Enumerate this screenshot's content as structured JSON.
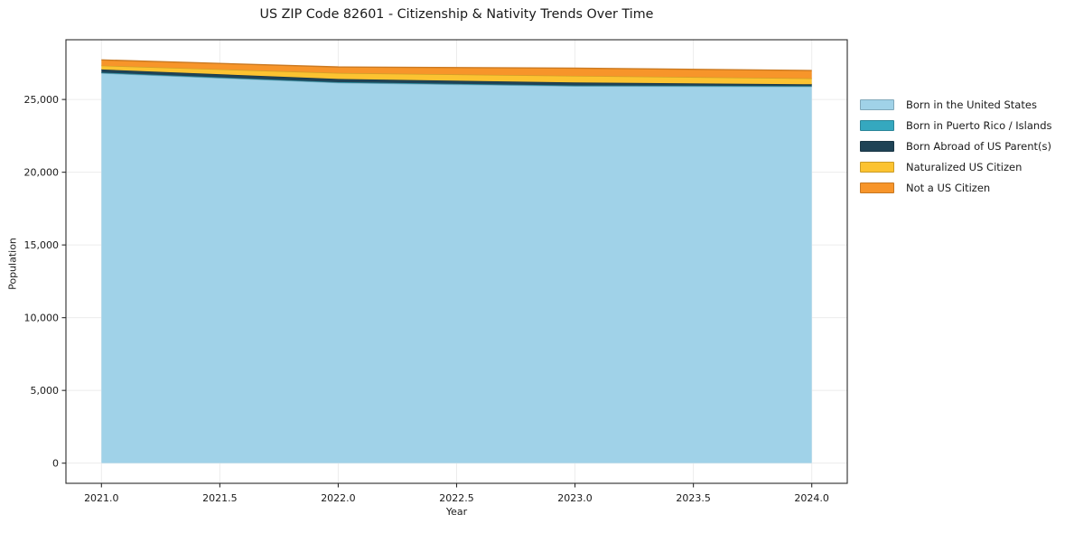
{
  "page": {
    "background": "#ffffff",
    "text_color": "#1a1a1a",
    "grid_color": "#ececec",
    "spine_color": "#2b2b2b"
  },
  "chart_data": {
    "type": "area",
    "stacked": true,
    "title": "US ZIP Code 82601 - Citizenship & Nativity Trends Over Time",
    "xlabel": "Year",
    "ylabel": "Population",
    "x": [
      2021,
      2022,
      2023,
      2024
    ],
    "xlim": [
      2020.85,
      2024.15
    ],
    "ylim": [
      -1386,
      29106
    ],
    "grid": true,
    "legend_position": "right-outside",
    "xticks": {
      "values": [
        2021.0,
        2021.5,
        2022.0,
        2022.5,
        2023.0,
        2023.5,
        2024.0
      ],
      "labels": [
        "2021.0",
        "2021.5",
        "2022.0",
        "2022.5",
        "2023.0",
        "2023.5",
        "2024.0"
      ]
    },
    "yticks": {
      "values": [
        0,
        5000,
        10000,
        15000,
        20000,
        25000
      ],
      "labels": [
        "0",
        "5,000",
        "10,000",
        "15,000",
        "20,000",
        "25,000"
      ]
    },
    "series": [
      {
        "name": "Born in the United States",
        "color": "#a0d2e8",
        "values": [
          26810,
          26150,
          25920,
          25890
        ]
      },
      {
        "name": "Born in Puerto Rico / Islands",
        "color": "#35a8bf",
        "values": [
          40,
          40,
          40,
          35
        ]
      },
      {
        "name": "Born Abroad of US Parent(s)",
        "color": "#1f4356",
        "values": [
          215,
          220,
          210,
          120
        ]
      },
      {
        "name": "Naturalized US Citizen",
        "color": "#fcc331",
        "values": [
          265,
          410,
          455,
          405
        ]
      },
      {
        "name": "Not a US Citizen",
        "color": "#f7952a",
        "values": [
          390,
          415,
          530,
          540
        ]
      }
    ],
    "totals": [
      27720,
      27235,
      27155,
      26990
    ]
  }
}
